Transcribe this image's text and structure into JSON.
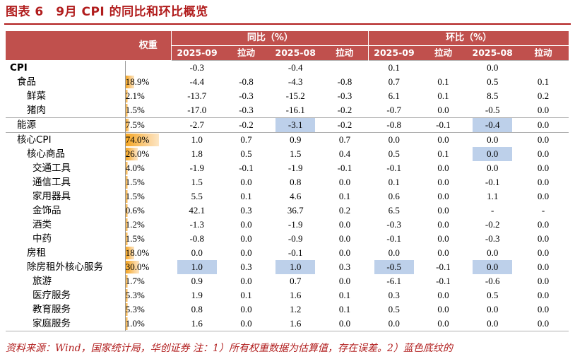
{
  "title": "图表 6　9月 CPI 的同比和环比概览",
  "header": {
    "weight": "权重",
    "yoy": "同比（%）",
    "mom": "环比（%）",
    "sub": [
      "2025-09",
      "拉动",
      "2025-08",
      "拉动",
      "2025-09",
      "拉动",
      "2025-08",
      "拉动"
    ]
  },
  "rows": [
    {
      "name": "CPI",
      "level": 0,
      "weight": "",
      "weight_frac": 0,
      "vals": [
        "-0.3",
        "",
        "-0.4",
        "",
        "0.1",
        "",
        "0.0",
        ""
      ],
      "hl": [],
      "group": true
    },
    {
      "name": "食品",
      "level": 1,
      "weight": "18.9%",
      "weight_frac": 0.189,
      "vals": [
        "-4.4",
        "-0.8",
        "-4.3",
        "-0.8",
        "0.7",
        "0.1",
        "0.5",
        "0.1"
      ],
      "hl": [],
      "group": false
    },
    {
      "name": "鲜菜",
      "level": 2,
      "weight": "2.1%",
      "weight_frac": 0.021,
      "vals": [
        "-13.7",
        "-0.3",
        "-15.2",
        "-0.3",
        "6.1",
        "0.1",
        "8.5",
        "0.2"
      ],
      "hl": [],
      "group": false
    },
    {
      "name": "猪肉",
      "level": 2,
      "weight": "1.5%",
      "weight_frac": 0.015,
      "vals": [
        "-17.0",
        "-0.3",
        "-16.1",
        "-0.2",
        "-0.7",
        "0.0",
        "-0.5",
        "0.0"
      ],
      "hl": [],
      "group": false
    },
    {
      "name": "能源",
      "level": 1,
      "weight": "7.5%",
      "weight_frac": 0.075,
      "vals": [
        "-2.7",
        "-0.2",
        "-3.1",
        "-0.2",
        "-0.8",
        "-0.1",
        "-0.4",
        "0.0"
      ],
      "hl": [
        2,
        6
      ],
      "group": true
    },
    {
      "name": "核心CPI",
      "level": 1,
      "weight": "74.0%",
      "weight_frac": 0.74,
      "vals": [
        "1.0",
        "0.7",
        "0.9",
        "0.7",
        "0.0",
        "0.0",
        "0.0",
        "0.0"
      ],
      "hl": [],
      "group": true
    },
    {
      "name": "核心商品",
      "level": 2,
      "weight": "26.0%",
      "weight_frac": 0.26,
      "vals": [
        "1.8",
        "0.5",
        "1.5",
        "0.4",
        "0.5",
        "0.1",
        "0.0",
        "0.0"
      ],
      "hl": [
        6
      ],
      "group": false
    },
    {
      "name": "交通工具",
      "level": 3,
      "weight": "4.0%",
      "weight_frac": 0.04,
      "vals": [
        "-1.9",
        "-0.1",
        "-1.9",
        "-0.1",
        "-0.1",
        "0.0",
        "0.0",
        "0.0"
      ],
      "hl": [],
      "group": false
    },
    {
      "name": "通信工具",
      "level": 3,
      "weight": "1.5%",
      "weight_frac": 0.015,
      "vals": [
        "1.5",
        "0.0",
        "0.8",
        "0.0",
        "0.1",
        "0.0",
        "-0.1",
        "0.0"
      ],
      "hl": [],
      "group": false
    },
    {
      "name": "家用器具",
      "level": 3,
      "weight": "1.5%",
      "weight_frac": 0.015,
      "vals": [
        "5.5",
        "0.1",
        "4.6",
        "0.1",
        "0.6",
        "0.0",
        "1.1",
        "0.0"
      ],
      "hl": [],
      "group": false
    },
    {
      "name": "金饰品",
      "level": 3,
      "weight": "0.6%",
      "weight_frac": 0.006,
      "vals": [
        "42.1",
        "0.3",
        "36.7",
        "0.2",
        "6.5",
        "0.0",
        "-",
        "-"
      ],
      "hl": [],
      "group": false
    },
    {
      "name": "酒类",
      "level": 3,
      "weight": "1.2%",
      "weight_frac": 0.012,
      "vals": [
        "-1.3",
        "0.0",
        "-1.9",
        "0.0",
        "-0.3",
        "0.0",
        "-0.2",
        "0.0"
      ],
      "hl": [],
      "group": false
    },
    {
      "name": "中药",
      "level": 3,
      "weight": "1.5%",
      "weight_frac": 0.015,
      "vals": [
        "-0.8",
        "0.0",
        "-0.9",
        "0.0",
        "-0.1",
        "0.0",
        "-0.3",
        "0.0"
      ],
      "hl": [],
      "group": false
    },
    {
      "name": "房租",
      "level": 2,
      "weight": "18.0%",
      "weight_frac": 0.18,
      "vals": [
        "0.0",
        "0.0",
        "-0.1",
        "0.0",
        "0.0",
        "0.0",
        "0.0",
        "0.0"
      ],
      "hl": [],
      "group": false
    },
    {
      "name": "除房租外核心服务",
      "level": 2,
      "weight": "30.0%",
      "weight_frac": 0.3,
      "vals": [
        "1.0",
        "0.3",
        "1.0",
        "0.3",
        "-0.5",
        "-0.1",
        "0.0",
        "0.0"
      ],
      "hl": [
        0,
        2,
        4,
        6
      ],
      "group": false
    },
    {
      "name": "旅游",
      "level": 3,
      "weight": "1.7%",
      "weight_frac": 0.017,
      "vals": [
        "0.9",
        "0.0",
        "0.7",
        "0.0",
        "-6.1",
        "-0.1",
        "-0.6",
        "0.0"
      ],
      "hl": [],
      "group": false
    },
    {
      "name": "医疗服务",
      "level": 3,
      "weight": "5.3%",
      "weight_frac": 0.053,
      "vals": [
        "1.9",
        "0.1",
        "1.6",
        "0.1",
        "0.3",
        "0.0",
        "0.5",
        "0.0"
      ],
      "hl": [],
      "group": false
    },
    {
      "name": "教育服务",
      "level": 3,
      "weight": "5.3%",
      "weight_frac": 0.053,
      "vals": [
        "0.8",
        "0.0",
        "1.2",
        "0.1",
        "0.5",
        "0.0",
        "0.0",
        "0.0"
      ],
      "hl": [],
      "group": false
    },
    {
      "name": "家庭服务",
      "level": 3,
      "weight": "1.0%",
      "weight_frac": 0.01,
      "vals": [
        "1.6",
        "0.0",
        "1.6",
        "0.0",
        "0.0",
        "0.0",
        "0.0",
        "0.0"
      ],
      "hl": [],
      "group": false
    }
  ],
  "footer": "资料来源：Wind，国家统计局，华创证券 注：1）所有权重数据为估算值，存在误差。2）蓝色底纹的",
  "colors": {
    "header_bg": "#c0504d",
    "title": "#b11d1d",
    "weight_bar": "#f5a623",
    "highlight": "#bdd0ea"
  }
}
